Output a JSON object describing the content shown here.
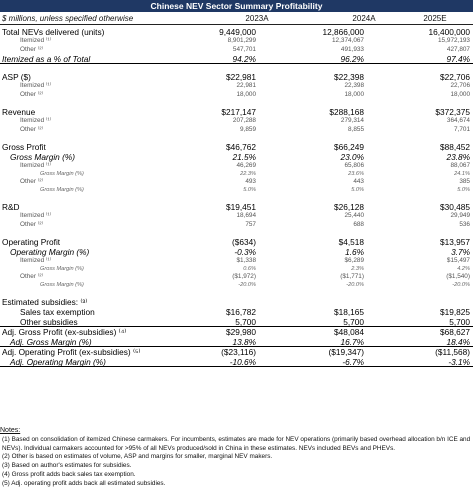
{
  "title": "Chinese NEV Sector Summary Profitability",
  "units_note": "$ millions, unless specified otherwise",
  "years": [
    "2023A",
    "2024A",
    "2025E"
  ],
  "rows": [
    {
      "label": "Total NEVs delivered (units)",
      "style": "main",
      "values": [
        "9,449,000",
        "12,866,000",
        "16,400,000"
      ]
    },
    {
      "label": "Itemized ⁽¹⁾",
      "style": "sub",
      "values": [
        "8,901,299",
        "12,374,067",
        "15,972,193"
      ]
    },
    {
      "label": "Other ⁽²⁾",
      "style": "sub",
      "values": [
        "547,701",
        "491,933",
        "427,807"
      ]
    },
    {
      "label": "Itemized as a % of Total",
      "style": "main-ital-under",
      "values": [
        "94.2%",
        "96.2%",
        "97.4%"
      ]
    },
    {
      "style": "gap"
    },
    {
      "label": "ASP ($)",
      "style": "main",
      "values": [
        "$22,981",
        "$22,398",
        "$22,706"
      ]
    },
    {
      "label": "Itemized ⁽¹⁾",
      "style": "sub",
      "values": [
        "22,981",
        "22,398",
        "22,706"
      ]
    },
    {
      "label": "Other ⁽²⁾",
      "style": "sub",
      "values": [
        "18,000",
        "18,000",
        "18,000"
      ]
    },
    {
      "style": "gap"
    },
    {
      "label": "Revenue",
      "style": "main",
      "values": [
        "$217,147",
        "$288,168",
        "$372,375"
      ]
    },
    {
      "label": "Itemized ⁽¹⁾",
      "style": "sub",
      "values": [
        "207,288",
        "279,314",
        "364,674"
      ]
    },
    {
      "label": "Other ⁽²⁾",
      "style": "sub",
      "values": [
        "9,859",
        "8,855",
        "7,701"
      ]
    },
    {
      "style": "gap"
    },
    {
      "label": "Gross Profit",
      "style": "main",
      "values": [
        "$46,762",
        "$66,249",
        "$88,452"
      ]
    },
    {
      "label": "Gross Margin (%)",
      "style": "main-ital-ind",
      "values": [
        "21.5%",
        "23.0%",
        "23.8%"
      ]
    },
    {
      "label": "Itemized ⁽¹⁾",
      "style": "sub",
      "values": [
        "46,269",
        "65,806",
        "88,067"
      ]
    },
    {
      "label": "Gross Margin (%)",
      "style": "tiny-ital",
      "values": [
        "22.3%",
        "23.6%",
        "24.1%"
      ]
    },
    {
      "label": "Other ⁽²⁾",
      "style": "sub",
      "values": [
        "493",
        "443",
        "385"
      ]
    },
    {
      "label": "Gross Margin (%)",
      "style": "tiny-ital",
      "values": [
        "5.0%",
        "5.0%",
        "5.0%"
      ]
    },
    {
      "style": "gap"
    },
    {
      "label": "R&D",
      "style": "main",
      "values": [
        "$19,451",
        "$26,128",
        "$30,485"
      ]
    },
    {
      "label": "Itemized ⁽¹⁾",
      "style": "sub",
      "values": [
        "18,694",
        "25,440",
        "29,949"
      ]
    },
    {
      "label": "Other ⁽²⁾",
      "style": "sub",
      "values": [
        "757",
        "688",
        "536"
      ]
    },
    {
      "style": "gap"
    },
    {
      "label": "Operating Profit",
      "style": "main",
      "values": [
        "($634)",
        "$4,518",
        "$13,957"
      ]
    },
    {
      "label": "Operating Margin (%)",
      "style": "main-ital-ind",
      "values": [
        "-0.3%",
        "1.6%",
        "3.7%"
      ]
    },
    {
      "label": "Itemized ⁽¹⁾",
      "style": "sub",
      "values": [
        "$1,338",
        "$6,289",
        "$15,497"
      ]
    },
    {
      "label": "Gross Margin (%)",
      "style": "tiny-ital",
      "values": [
        "0.6%",
        "2.3%",
        "4.2%"
      ]
    },
    {
      "label": "Other ⁽²⁾",
      "style": "sub",
      "values": [
        "($1,972)",
        "($1,771)",
        "($1,540)"
      ]
    },
    {
      "label": "Gross Margin (%)",
      "style": "tiny-ital",
      "values": [
        "-20.0%",
        "-20.0%",
        "-20.0%"
      ]
    },
    {
      "style": "gap"
    },
    {
      "label": "Estimated subsidies: ⁽³⁾",
      "style": "main",
      "values": [
        "",
        "",
        ""
      ]
    },
    {
      "label": "Sales tax exemption",
      "style": "main-ind2",
      "values": [
        "$16,782",
        "$18,165",
        "$19,825"
      ]
    },
    {
      "label": "Other subsidies",
      "style": "main-ind2-under",
      "values": [
        "5,700",
        "5,700",
        "5,700"
      ]
    },
    {
      "label": "Adj. Gross Profit (ex-subsidies) ⁽⁴⁾",
      "style": "main",
      "values": [
        "$29,980",
        "$48,084",
        "$68,627"
      ]
    },
    {
      "label": "Adj. Gross Margin (%)",
      "style": "main-ital-ind-under",
      "values": [
        "13.8%",
        "16.7%",
        "18.4%"
      ]
    },
    {
      "label": "Adj. Operating Profit (ex-subsidies) ⁽⁵⁾",
      "style": "main",
      "values": [
        "($23,116)",
        "($19,347)",
        "($11,568)"
      ]
    },
    {
      "label": "Adj. Operating Margin (%)",
      "style": "main-ital-ind-under",
      "values": [
        "-10.6%",
        "-6.7%",
        "-3.1%"
      ]
    }
  ],
  "notes": {
    "heading": "Notes:",
    "items": [
      "(1) Based on consolidation of itemized Chinese carmakers. For incumbents, estimates are made for NEV operations (primarily based overhead allocation b/n ICE and NEVs). Individual carmakers accounted for >95% of all NEVs produced/sold in China in these estimates. NEVs included BEVs and PHEVs.",
      "(2) Other is based on estimates of volume, ASP and margins for smaller, marginal NEV makers.",
      "(3) Based on author's estimates for subsidies.",
      "(4) Gross profit adds back sales tax exemption.",
      "(5) Adj. operating profit adds back all estimated subsidies."
    ]
  }
}
